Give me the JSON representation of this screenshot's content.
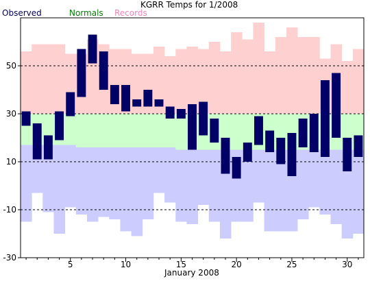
{
  "chart_data": {
    "type": "bar",
    "title": "KGRR Temps for 1/2008",
    "xlabel": "January 2008",
    "ylabel": "",
    "xlim": [
      0.5,
      31.5
    ],
    "ylim": [
      -30,
      70
    ],
    "x_ticks": [
      5,
      10,
      15,
      20,
      25,
      30
    ],
    "x_tick_labels": [
      "5",
      "10",
      "15",
      "20",
      "25",
      "30"
    ],
    "y_ticks": [
      -30,
      -10,
      10,
      30,
      50
    ],
    "y_tick_labels": [
      "-30",
      "-10",
      "10",
      "30",
      "50"
    ],
    "grid_lines_y": [
      -10,
      10,
      30,
      50
    ],
    "legend": [
      {
        "name": "Observed",
        "color": "#000066"
      },
      {
        "name": "Normals",
        "color": "#008000"
      },
      {
        "name": "Records",
        "color": "#ee88bb"
      }
    ],
    "legend_placement": "top-left",
    "colors": {
      "observed": "#000066",
      "record_high_fill": "#ffd0d0",
      "normal_fill": "#ccffcc",
      "record_low_fill": "#ccccff",
      "grid": "#000000"
    },
    "days": [
      1,
      2,
      3,
      4,
      5,
      6,
      7,
      8,
      9,
      10,
      11,
      12,
      13,
      14,
      15,
      16,
      17,
      18,
      19,
      20,
      21,
      22,
      23,
      24,
      25,
      26,
      27,
      28,
      29,
      30,
      31
    ],
    "series": [
      {
        "name": "Records",
        "record_high": [
          56,
          59,
          59,
          59,
          55,
          55,
          61,
          59,
          57,
          57,
          55,
          55,
          58,
          54,
          57,
          58,
          57,
          60,
          56,
          64,
          61,
          68,
          56,
          62,
          66,
          62,
          62,
          53,
          59,
          52,
          57
        ],
        "record_low": [
          -15,
          -3,
          -11,
          -20,
          -9,
          -12,
          -15,
          -13,
          -14,
          -19,
          -21,
          -14,
          -3,
          -7,
          -15,
          -16,
          -8,
          -15,
          -22,
          -15,
          -15,
          -7,
          -19,
          -19,
          -19,
          -14,
          -9,
          -12,
          -16,
          -22,
          -20
        ]
      },
      {
        "name": "Normals",
        "normal_high": [
          30,
          30,
          30,
          30,
          30,
          30,
          30,
          30,
          30,
          30,
          30,
          30,
          30,
          30,
          30,
          30,
          30,
          30,
          30,
          30,
          30,
          30,
          30,
          30,
          30,
          30,
          30,
          30,
          30,
          30,
          30
        ],
        "normal_low": [
          17,
          17,
          17,
          17,
          17,
          16,
          16,
          16,
          16,
          16,
          16,
          16,
          16,
          16,
          15,
          15,
          15,
          15,
          15,
          15,
          15,
          15,
          15,
          15,
          15,
          15,
          15,
          15,
          15,
          15,
          15
        ]
      },
      {
        "name": "Observed",
        "high": [
          31,
          26,
          21,
          31,
          39,
          57,
          63,
          56,
          42,
          42,
          36,
          40,
          36,
          33,
          32,
          34,
          35,
          28,
          20,
          12,
          18,
          29,
          23,
          20,
          22,
          28,
          30,
          44,
          47,
          20,
          21
        ],
        "low": [
          25,
          11,
          11,
          19,
          29,
          37,
          51,
          40,
          34,
          31,
          33,
          33,
          33,
          28,
          28,
          15,
          21,
          18,
          5,
          3,
          10,
          17,
          14,
          9,
          4,
          16,
          14,
          12,
          20,
          6,
          12
        ]
      }
    ]
  }
}
